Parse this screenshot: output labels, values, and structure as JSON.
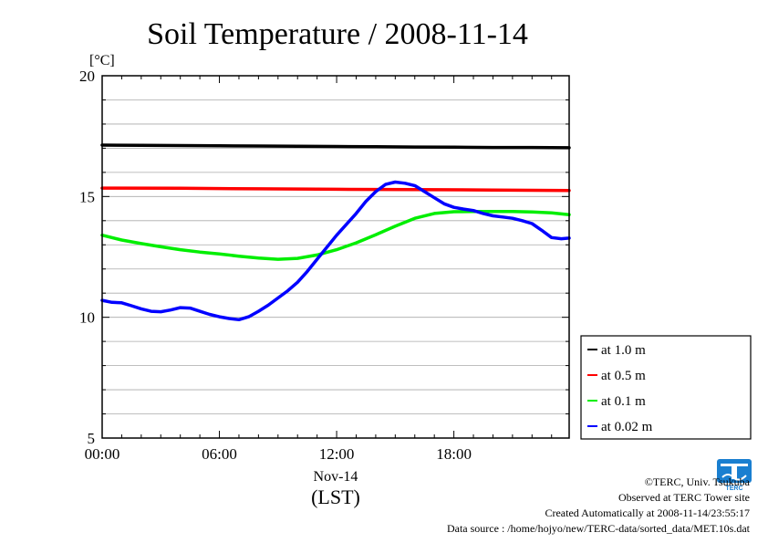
{
  "chart_data": {
    "type": "line",
    "title": "Soil Temperature / 2008-11-14",
    "ylabel": "[°C]",
    "xlabel": "(LST)",
    "date_label": "Nov-14",
    "ylim": [
      5,
      20
    ],
    "xlim": [
      0,
      23.9
    ],
    "yticks": [
      "5",
      "10",
      "15",
      "20"
    ],
    "xticks": [
      "00:00",
      "06:00",
      "12:00",
      "18:00"
    ],
    "grid": true,
    "legend_position": "right",
    "series": [
      {
        "name": "at 1.0 m",
        "color": "#000000",
        "x": [
          0,
          2,
          4,
          6,
          8,
          10,
          12,
          14,
          16,
          18,
          20,
          22,
          23.9
        ],
        "y": [
          17.13,
          17.12,
          17.11,
          17.1,
          17.09,
          17.08,
          17.07,
          17.06,
          17.05,
          17.04,
          17.03,
          17.03,
          17.02
        ]
      },
      {
        "name": "at 0.5 m",
        "color": "#ff0000",
        "x": [
          0,
          4,
          8,
          12,
          16,
          20,
          23.9
        ],
        "y": [
          15.35,
          15.34,
          15.32,
          15.3,
          15.29,
          15.27,
          15.25
        ]
      },
      {
        "name": "at 0.1 m",
        "color": "#00ee00",
        "x": [
          0,
          1,
          2,
          3,
          4,
          5,
          6,
          7,
          8,
          9,
          10,
          11,
          12,
          13,
          14,
          15,
          16,
          17,
          18,
          19,
          20,
          21,
          22,
          23,
          23.9
        ],
        "y": [
          13.4,
          13.2,
          13.05,
          12.92,
          12.8,
          12.7,
          12.62,
          12.53,
          12.45,
          12.4,
          12.44,
          12.58,
          12.8,
          13.08,
          13.42,
          13.77,
          14.1,
          14.3,
          14.37,
          14.38,
          14.38,
          14.38,
          14.36,
          14.32,
          14.25
        ]
      },
      {
        "name": "at 0.02 m",
        "color": "#0000ff",
        "x": [
          0,
          0.5,
          1,
          1.5,
          2,
          2.5,
          3,
          3.5,
          4,
          4.5,
          5,
          5.5,
          6,
          6.5,
          7,
          7.5,
          8,
          8.5,
          9,
          9.5,
          10,
          10.5,
          11,
          11.5,
          12,
          12.5,
          13,
          13.5,
          14,
          14.5,
          15,
          15.5,
          16,
          16.5,
          17,
          17.5,
          18,
          18.5,
          19,
          19.5,
          20,
          20.5,
          21,
          21.5,
          22,
          22.5,
          23,
          23.5,
          23.9
        ],
        "y": [
          10.7,
          10.62,
          10.6,
          10.48,
          10.35,
          10.25,
          10.23,
          10.3,
          10.4,
          10.38,
          10.25,
          10.12,
          10.02,
          9.95,
          9.9,
          10.02,
          10.25,
          10.5,
          10.8,
          11.1,
          11.45,
          11.9,
          12.4,
          12.9,
          13.4,
          13.85,
          14.3,
          14.8,
          15.2,
          15.5,
          15.6,
          15.55,
          15.45,
          15.2,
          14.95,
          14.7,
          14.55,
          14.48,
          14.42,
          14.3,
          14.2,
          14.15,
          14.1,
          14.0,
          13.88,
          13.6,
          13.3,
          13.25,
          13.28
        ]
      }
    ]
  },
  "credits": {
    "copyright": "©TERC, Univ. Tsukuba",
    "site": "Observed at TERC Tower site",
    "created": "Created Automatically at 2008-11-14/23:55:17",
    "source": "Data source : /home/hojyo/new/TERC-data/sorted_data/MET.10s.dat",
    "logo_text": "TERC"
  },
  "colors": {
    "logo_blue": "#1a7fd0",
    "grid": "#aaaaaa"
  }
}
